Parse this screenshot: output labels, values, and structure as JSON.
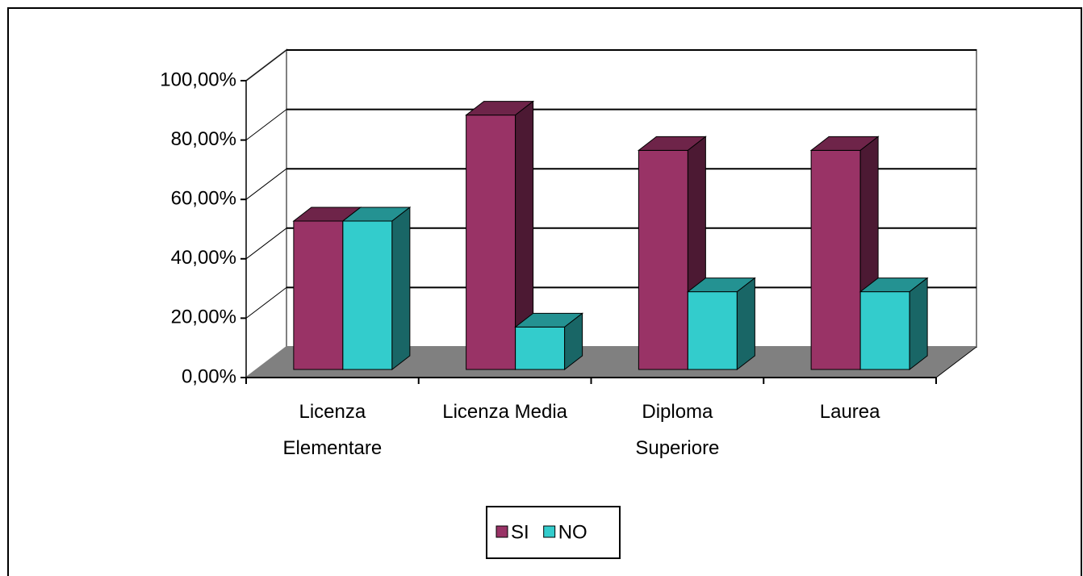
{
  "chart_data": {
    "type": "bar3d",
    "categories": [
      "Licenza\nElementare",
      "Licenza Media",
      "Diploma\nSuperiore",
      "Laurea"
    ],
    "series": [
      {
        "name": "SI",
        "color": "#993366",
        "values": [
          50,
          85.7,
          73.8,
          73.8
        ]
      },
      {
        "name": "NO",
        "color": "#33cccc",
        "values": [
          50,
          14.3,
          26.2,
          26.2
        ]
      }
    ],
    "ylim": [
      0,
      100
    ],
    "yticks": [
      {
        "value": 0,
        "label": "0,00%"
      },
      {
        "value": 20,
        "label": "20,00%"
      },
      {
        "value": 40,
        "label": "40,00%"
      },
      {
        "value": 60,
        "label": "60,00%"
      },
      {
        "value": 80,
        "label": "80,00%"
      },
      {
        "value": 100,
        "label": "100,00%"
      }
    ],
    "grid": true,
    "legend": "bottom"
  }
}
